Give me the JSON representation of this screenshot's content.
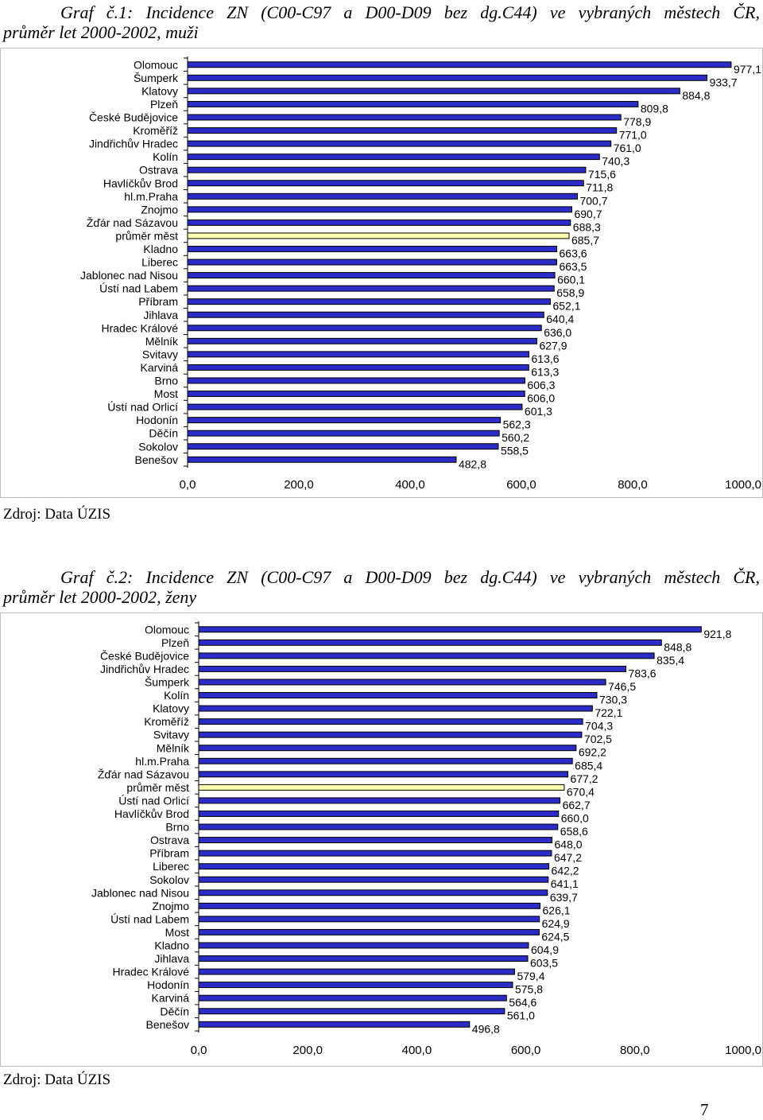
{
  "colors": {
    "bar": "#2b2bc8",
    "bar_highlight": "#ffffb0",
    "axis": "#000000",
    "frame": "#c0c0c0"
  },
  "page_number": "7",
  "chart_data": [
    {
      "type": "bar",
      "orientation": "horizontal",
      "caption_line1": "Graf č.1: Incidence ZN (C00-C97 a D00-D09 bez dg.C44) ve vybraných městech ČR,",
      "caption_line2": "průměr let 2000-2002, muži",
      "source": "Zdroj: Data ÚZIS",
      "categories": [
        "Olomouc",
        "Šumperk",
        "Klatovy",
        "Plzeň",
        "České Budějovice",
        "Kroměříž",
        "Jindřichův Hradec",
        "Kolín",
        "Ostrava",
        "Havlíčkův Brod",
        "hl.m.Praha",
        "Znojmo",
        "Žďár nad Sázavou",
        "průměr měst",
        "Kladno",
        "Liberec",
        "Jablonec nad Nisou",
        "Ústí nad Labem",
        "Příbram",
        "Jihlava",
        "Hradec Králové",
        "Mělník",
        "Svitavy",
        "Karviná",
        "Brno",
        "Most",
        "Ústí nad Orlicí",
        "Hodonín",
        "Děčín",
        "Sokolov",
        "Benešov"
      ],
      "values": [
        977.1,
        933.7,
        884.8,
        809.8,
        778.9,
        771.0,
        761.0,
        740.3,
        715.6,
        711.8,
        700.7,
        690.7,
        688.3,
        685.7,
        663.6,
        663.5,
        660.1,
        658.9,
        652.1,
        640.4,
        636.0,
        627.9,
        613.6,
        613.3,
        606.3,
        606.0,
        601.3,
        562.3,
        560.2,
        558.5,
        482.8
      ],
      "value_labels": [
        "977,1",
        "933,7",
        "884,8",
        "809,8",
        "778,9",
        "771,0",
        "761,0",
        "740,3",
        "715,6",
        "711,8",
        "700,7",
        "690,7",
        "688,3",
        "685,7",
        "663,6",
        "663,5",
        "660,1",
        "658,9",
        "652,1",
        "640,4",
        "636,0",
        "627,9",
        "613,6",
        "613,3",
        "606,3",
        "606,0",
        "601,3",
        "562,3",
        "560,2",
        "558,5",
        "482,8"
      ],
      "highlight": "průměr měst",
      "xlim": [
        0,
        1000
      ],
      "xticks": [
        "0,0",
        "200,0",
        "400,0",
        "600,0",
        "800,0",
        "1000,0"
      ]
    },
    {
      "type": "bar",
      "orientation": "horizontal",
      "caption_line1": "Graf č.2: Incidence ZN (C00-C97 a D00-D09 bez dg.C44) ve vybraných městech ČR,",
      "caption_line2": "průměr let 2000-2002, ženy",
      "source": "Zdroj: Data ÚZIS",
      "categories": [
        "Olomouc",
        "Plzeň",
        "České Budějovice",
        "Jindřichův Hradec",
        "Šumperk",
        "Kolín",
        "Klatovy",
        "Kroměříž",
        "Svitavy",
        "Mělník",
        "hl.m.Praha",
        "Žďár nad Sázavou",
        "průměr měst",
        "Ústí nad Orlicí",
        "Havlíčkův Brod",
        "Brno",
        "Ostrava",
        "Příbram",
        "Liberec",
        "Sokolov",
        "Jablonec nad Nisou",
        "Znojmo",
        "Ústí nad Labem",
        "Most",
        "Kladno",
        "Jihlava",
        "Hradec Králové",
        "Hodonín",
        "Karviná",
        "Děčín",
        "Benešov"
      ],
      "values": [
        921.8,
        848.8,
        835.4,
        783.6,
        746.5,
        730.3,
        722.1,
        704.3,
        702.5,
        692.2,
        685.4,
        677.2,
        670.4,
        662.7,
        660.0,
        658.6,
        648.0,
        647.2,
        642.2,
        641.1,
        639.7,
        626.1,
        624.9,
        624.5,
        604.9,
        603.5,
        579.4,
        575.8,
        564.6,
        561.0,
        496.8
      ],
      "value_labels": [
        "921,8",
        "848,8",
        "835,4",
        "783,6",
        "746,5",
        "730,3",
        "722,1",
        "704,3",
        "702,5",
        "692,2",
        "685,4",
        "677,2",
        "670,4",
        "662,7",
        "660,0",
        "658,6",
        "648,0",
        "647,2",
        "642,2",
        "641,1",
        "639,7",
        "626,1",
        "624,9",
        "624,5",
        "604,9",
        "603,5",
        "579,4",
        "575,8",
        "564,6",
        "561,0",
        "496,8"
      ],
      "highlight": "průměr měst",
      "xlim": [
        0,
        1000
      ],
      "xticks": [
        "0,0",
        "200,0",
        "400,0",
        "600,0",
        "800,0",
        "1000,0"
      ]
    }
  ]
}
